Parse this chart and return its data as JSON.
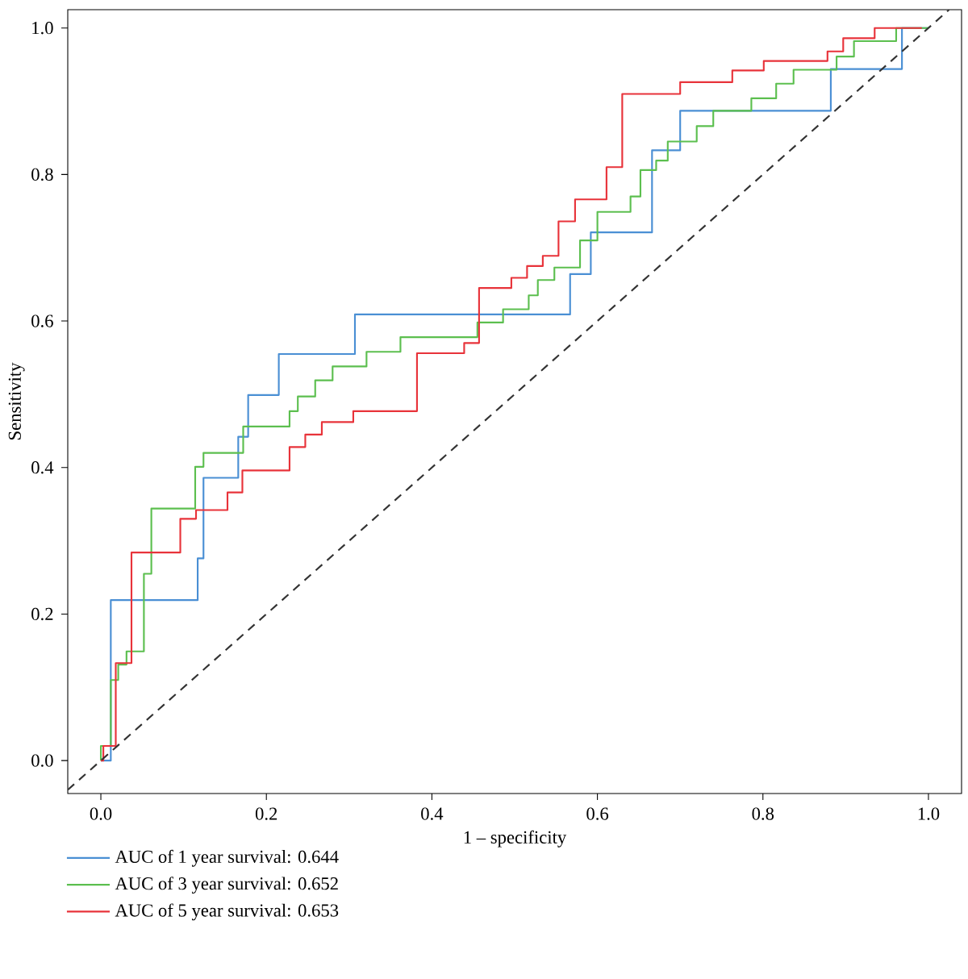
{
  "chart_data": {
    "type": "step",
    "xlabel": "1 – specificity",
    "ylabel": "Sensitivity",
    "xlim": [
      -0.04,
      1.04
    ],
    "ylim": [
      -0.045,
      1.025
    ],
    "xticks": [
      {
        "value": 0,
        "label": "0.0"
      },
      {
        "value": 0.2,
        "label": "0.2"
      },
      {
        "value": 0.4,
        "label": "0.4"
      },
      {
        "value": 0.6,
        "label": "0.6"
      },
      {
        "value": 0.8,
        "label": "0.8"
      },
      {
        "value": 1,
        "label": "1.0"
      }
    ],
    "yticks": [
      {
        "value": 0,
        "label": "0.0"
      },
      {
        "value": 0.2,
        "label": "0.2"
      },
      {
        "value": 0.4,
        "label": "0.4"
      },
      {
        "value": 0.6,
        "label": "0.6"
      },
      {
        "value": 0.8,
        "label": "0.8"
      },
      {
        "value": 1,
        "label": "1.0"
      }
    ],
    "grid": false,
    "legend": "bottom",
    "marker": "none",
    "series": [
      {
        "name": "AUC of 1 year survival: 0.644",
        "color": "#4a8fd4",
        "x": [
          0,
          0.012,
          0.117,
          0.124,
          0.166,
          0.178,
          0.215,
          0.307,
          0.567,
          0.592,
          0.666,
          0.7,
          0.882,
          0.968,
          1.0
        ],
        "values": [
          0,
          0.219,
          0.276,
          0.386,
          0.442,
          0.499,
          0.555,
          0.609,
          0.664,
          0.721,
          0.833,
          0.887,
          0.944,
          1.0,
          1.0
        ]
      },
      {
        "name": "AUC of 3 year survival: 0.652",
        "color": "#5cbf4f",
        "x": [
          0,
          0,
          0.012,
          0.021,
          0.031,
          0.052,
          0.061,
          0.114,
          0.124,
          0.172,
          0.228,
          0.238,
          0.259,
          0.28,
          0.321,
          0.362,
          0.455,
          0.486,
          0.517,
          0.528,
          0.548,
          0.579,
          0.6,
          0.64,
          0.652,
          0.671,
          0.685,
          0.72,
          0.74,
          0.786,
          0.816,
          0.837,
          0.889,
          0.91,
          0.961,
          1.0
        ],
        "values": [
          0,
          0.02,
          0.11,
          0.131,
          0.149,
          0.255,
          0.344,
          0.401,
          0.42,
          0.456,
          0.477,
          0.497,
          0.519,
          0.538,
          0.558,
          0.578,
          0.598,
          0.616,
          0.635,
          0.656,
          0.673,
          0.71,
          0.749,
          0.77,
          0.806,
          0.819,
          0.845,
          0.866,
          0.887,
          0.904,
          0.924,
          0.943,
          0.961,
          0.982,
          1.0,
          1.0
        ]
      },
      {
        "name": "AUC of 5 year survival: 0.653",
        "color": "#e8333a",
        "x": [
          0,
          0.003,
          0.018,
          0.037,
          0.096,
          0.115,
          0.153,
          0.171,
          0.228,
          0.247,
          0.267,
          0.305,
          0.382,
          0.439,
          0.457,
          0.496,
          0.515,
          0.534,
          0.553,
          0.573,
          0.611,
          0.63,
          0.7,
          0.763,
          0.801,
          0.878,
          0.897,
          0.935,
          0.992
        ],
        "values": [
          0,
          0.02,
          0.133,
          0.284,
          0.33,
          0.342,
          0.366,
          0.396,
          0.428,
          0.445,
          0.462,
          0.477,
          0.556,
          0.57,
          0.645,
          0.659,
          0.675,
          0.689,
          0.736,
          0.766,
          0.81,
          0.91,
          0.926,
          0.942,
          0.955,
          0.968,
          0.986,
          1.0,
          1.0
        ]
      },
      {
        "type": "line",
        "line_style": "dashed",
        "color": "#333333",
        "x": [
          -0.04,
          1.025
        ],
        "values": [
          -0.04,
          1.025
        ]
      }
    ]
  }
}
